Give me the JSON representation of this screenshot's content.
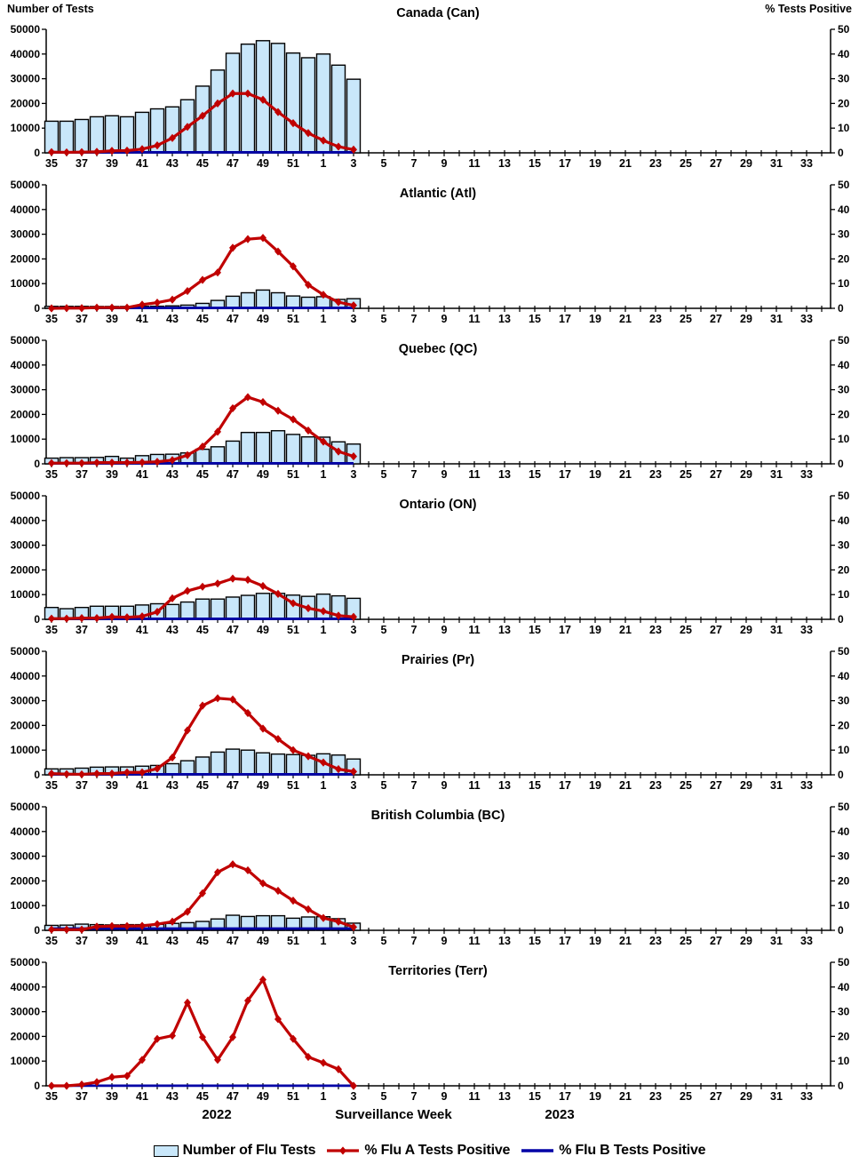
{
  "page": {
    "footer": {
      "year_left": "2022",
      "axis_label": "Surveillance Week",
      "year_right": "2023"
    },
    "legend": [
      {
        "icon": "tests-bar-swatch",
        "label": "Number of Flu Tests"
      },
      {
        "icon": "flu-a-line-marker",
        "label": "% Flu A Tests Positive"
      },
      {
        "icon": "flu-b-line-marker",
        "label": "% Flu B Tests Positive"
      }
    ]
  },
  "chart_data": {
    "type": "bar",
    "subtype": "combo-bar-and-lines-small-multiples",
    "left_axis": {
      "label": "Number of Tests",
      "range": [
        0,
        50000
      ],
      "ticks": [
        0,
        10000,
        20000,
        30000,
        40000,
        50000
      ]
    },
    "right_axis": {
      "label": "% Tests Positive",
      "range": [
        0,
        50
      ],
      "ticks": [
        0,
        10,
        20,
        30,
        40,
        50
      ]
    },
    "x_axis": {
      "label": "Surveillance Week",
      "years": [
        "2022",
        "2023"
      ],
      "labeled_weeks": "odd numbers only",
      "weeks_full": [
        35,
        36,
        37,
        38,
        39,
        40,
        41,
        42,
        43,
        44,
        45,
        46,
        47,
        48,
        49,
        50,
        51,
        52,
        1,
        2,
        3,
        4,
        5,
        6,
        7,
        8,
        9,
        10,
        11,
        12,
        13,
        14,
        15,
        16,
        17,
        18,
        19,
        20,
        21,
        22,
        23,
        24,
        25,
        26,
        27,
        28,
        29,
        30,
        31,
        32,
        33,
        34
      ],
      "weeks_with_data": [
        35,
        36,
        37,
        38,
        39,
        40,
        41,
        42,
        43,
        44,
        45,
        46,
        47,
        48,
        49,
        50,
        51,
        52,
        1,
        2,
        3
      ]
    },
    "colors": {
      "bar_fill": "#C9E7FA",
      "bar_border": "#000000",
      "flu_a": "#C00000",
      "flu_b": "#0000A6",
      "axis": "#000000"
    },
    "grid": false,
    "legend_position": "bottom-center",
    "panels": [
      {
        "id": "can",
        "title": "Canada (Can)",
        "tests": [
          12800,
          12800,
          13500,
          14600,
          15000,
          14600,
          16400,
          17800,
          18600,
          21500,
          27000,
          33500,
          40300,
          44000,
          45400,
          44300,
          40400,
          38500,
          40000,
          35500,
          29800
        ],
        "flu_a_pct": [
          0.3,
          0.2,
          0.3,
          0.4,
          0.8,
          0.9,
          1.5,
          3.0,
          6.0,
          10.5,
          15.0,
          20.0,
          24.0,
          24.0,
          21.5,
          16.5,
          12.0,
          8.0,
          5.0,
          2.5,
          1.3
        ],
        "flu_b_pct": [
          0.2,
          0.2,
          0.2,
          0.2,
          0.2,
          0.2,
          0.2,
          0.2,
          0.2,
          0.2,
          0.2,
          0.2,
          0.2,
          0.2,
          0.2,
          0.2,
          0.2,
          0.2,
          0.2,
          0.2,
          0.2
        ]
      },
      {
        "id": "atl",
        "title": "Atlantic (Atl)",
        "tests": [
          800,
          800,
          800,
          750,
          750,
          750,
          800,
          850,
          1000,
          1300,
          2000,
          3200,
          4900,
          6300,
          7400,
          6300,
          5000,
          4500,
          4700,
          3600,
          3900
        ],
        "flu_a_pct": [
          0.0,
          0.1,
          0.1,
          0.3,
          0.3,
          0.3,
          1.5,
          2.3,
          3.5,
          7.0,
          11.5,
          14.5,
          24.5,
          28.0,
          28.5,
          23.0,
          17.0,
          9.5,
          5.5,
          2.5,
          1.2
        ],
        "flu_b_pct": [
          0.15,
          0.15,
          0.15,
          0.15,
          0.15,
          0.15,
          0.15,
          0.15,
          0.15,
          0.15,
          0.15,
          0.15,
          0.15,
          0.15,
          0.15,
          0.15,
          0.15,
          0.15,
          0.15,
          0.15,
          0.15
        ]
      },
      {
        "id": "qc",
        "title": "Quebec (QC)",
        "tests": [
          2300,
          2500,
          2500,
          2600,
          3000,
          2300,
          3300,
          3800,
          3900,
          4400,
          5900,
          6900,
          9200,
          12700,
          12700,
          13400,
          11900,
          10900,
          10800,
          8900,
          8000
        ],
        "flu_a_pct": [
          0.3,
          0.3,
          0.3,
          0.5,
          0.5,
          0.5,
          0.6,
          0.8,
          1.5,
          3.5,
          7.0,
          13.0,
          22.5,
          27.0,
          25.0,
          21.5,
          18.0,
          13.5,
          9.0,
          5.0,
          3.0
        ],
        "flu_b_pct": [
          0.2,
          0.2,
          0.2,
          0.2,
          0.2,
          0.2,
          0.2,
          0.2,
          0.2,
          0.2,
          0.2,
          0.2,
          0.2,
          0.2,
          0.2,
          0.2,
          0.2,
          0.2,
          0.2,
          0.2,
          0.2
        ]
      },
      {
        "id": "on",
        "title": "Ontario (ON)",
        "tests": [
          4800,
          4300,
          4800,
          5300,
          5300,
          5300,
          5800,
          6300,
          6000,
          7000,
          8200,
          8200,
          9000,
          9700,
          10500,
          10500,
          9800,
          9300,
          10200,
          9500,
          8500
        ],
        "flu_a_pct": [
          0.3,
          0.3,
          0.5,
          0.5,
          1.0,
          0.8,
          1.2,
          3.0,
          8.5,
          11.5,
          13.2,
          14.5,
          16.5,
          16.0,
          13.5,
          10.3,
          6.5,
          4.5,
          3.3,
          1.5,
          1.0
        ],
        "flu_b_pct": [
          0.2,
          0.2,
          0.2,
          0.2,
          0.2,
          0.2,
          0.2,
          0.2,
          0.2,
          0.2,
          0.2,
          0.2,
          0.2,
          0.2,
          0.2,
          0.2,
          0.2,
          0.2,
          0.2,
          0.2,
          0.2
        ]
      },
      {
        "id": "pr",
        "title": "Prairies (Pr)",
        "tests": [
          2400,
          2400,
          2700,
          3100,
          3200,
          3200,
          3500,
          3800,
          4500,
          5700,
          7200,
          9200,
          10400,
          10000,
          8900,
          8400,
          8200,
          7900,
          8500,
          8000,
          6400
        ],
        "flu_a_pct": [
          0.5,
          0.3,
          0.2,
          0.5,
          0.5,
          1.0,
          1.0,
          2.5,
          7.0,
          18.0,
          28.0,
          31.0,
          30.5,
          25.0,
          18.7,
          14.5,
          10.0,
          7.5,
          5.0,
          2.3,
          1.3
        ],
        "flu_b_pct": [
          0.2,
          0.2,
          0.2,
          0.2,
          0.2,
          0.2,
          0.2,
          0.2,
          0.2,
          0.2,
          0.2,
          0.2,
          0.2,
          0.2,
          0.2,
          0.2,
          0.2,
          0.2,
          0.2,
          0.2,
          0.2
        ]
      },
      {
        "id": "bc",
        "title": "British Columbia (BC)",
        "tests": [
          2000,
          2100,
          2500,
          2300,
          2200,
          2300,
          2300,
          2400,
          2800,
          3100,
          3600,
          4600,
          6100,
          5600,
          5900,
          5900,
          4900,
          5400,
          5500,
          4700,
          2900
        ],
        "flu_a_pct": [
          0.3,
          0.3,
          0.3,
          1.5,
          1.7,
          1.7,
          1.8,
          2.5,
          3.5,
          7.5,
          15.0,
          23.5,
          26.7,
          24.3,
          19.0,
          16.0,
          12.0,
          8.5,
          5.0,
          3.5,
          1.3
        ],
        "flu_b_pct": [
          0.7,
          0.7,
          0.7,
          0.7,
          0.7,
          0.7,
          0.7,
          0.7,
          0.7,
          0.7,
          0.7,
          0.7,
          0.7,
          0.7,
          0.7,
          0.7,
          0.7,
          0.7,
          0.7,
          0.7,
          0.7
        ]
      },
      {
        "id": "terr",
        "title": "Territories (Terr)",
        "tests": [
          0,
          0,
          0,
          0,
          0,
          0,
          0,
          0,
          0,
          0,
          0,
          0,
          0,
          0,
          0,
          0,
          0,
          0,
          0,
          0,
          0
        ],
        "flu_a_pct": [
          0.0,
          0.0,
          0.5,
          1.5,
          3.5,
          4.0,
          10.5,
          19.0,
          20.3,
          33.7,
          19.7,
          10.5,
          19.7,
          34.5,
          43.0,
          27.0,
          19.0,
          11.7,
          9.3,
          6.7,
          0.0
        ],
        "flu_b_pct": [
          0.05,
          0.05,
          0.05,
          0.05,
          0.05,
          0.05,
          0.05,
          0.05,
          0.05,
          0.05,
          0.05,
          0.05,
          0.05,
          0.05,
          0.05,
          0.05,
          0.05,
          0.05,
          0.05,
          0.05,
          0.05
        ]
      }
    ]
  }
}
